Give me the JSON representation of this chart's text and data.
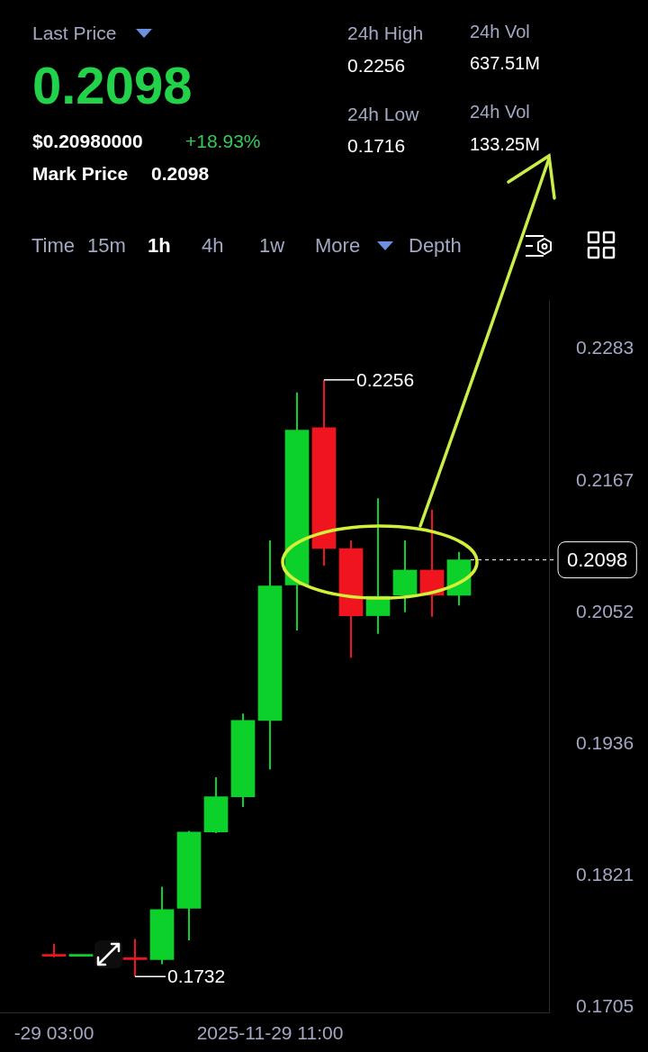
{
  "chart_data": {
    "type": "candlestick",
    "x": [
      "2025-11-29T03:00",
      "2025-11-29T04:00",
      "2025-11-29T06:00",
      "2025-11-29T07:00",
      "2025-11-29T08:00",
      "2025-11-29T09:00",
      "2025-11-29T10:00",
      "2025-11-29T11:00",
      "2025-11-29T12:00",
      "2025-11-29T13:00",
      "2025-11-29T14:00",
      "2025-11-29T15:00",
      "2025-11-29T16:00",
      "2025-11-29T17:00",
      "2025-11-29T18:00"
    ],
    "ohlc": [
      [
        0.1751,
        0.1761,
        0.1749,
        0.175
      ],
      [
        0.175,
        0.1751,
        0.175,
        0.1751
      ],
      [
        0.1748,
        0.1765,
        0.1732,
        0.1747
      ],
      [
        0.1747,
        0.1811,
        0.1743,
        0.1791
      ],
      [
        0.1792,
        0.186,
        0.1764,
        0.1859
      ],
      [
        0.1859,
        0.1907,
        0.1858,
        0.189
      ],
      [
        0.189,
        0.1963,
        0.1881,
        0.1957
      ],
      [
        0.1957,
        0.2115,
        0.1914,
        0.2075
      ],
      [
        0.2076,
        0.2245,
        0.2036,
        0.2212
      ],
      [
        0.2214,
        0.2256,
        0.2093,
        0.2108
      ],
      [
        0.2108,
        0.2115,
        0.2012,
        0.2049
      ],
      [
        0.2049,
        0.2152,
        0.2033,
        0.2066
      ],
      [
        0.2067,
        0.2115,
        0.2052,
        0.2089
      ],
      [
        0.2089,
        0.2142,
        0.2048,
        0.2067
      ],
      [
        0.2067,
        0.2105,
        0.2058,
        0.2098
      ]
    ],
    "colors": [
      "#f0141e",
      "#0bd12a",
      "#f0141e",
      "#0bd12a",
      "#0bd12a",
      "#0bd12a",
      "#0bd12a",
      "#0bd12a",
      "#0bd12a",
      "#f0141e",
      "#f0141e",
      "#0bd12a",
      "#0bd12a",
      "#f0141e",
      "#0bd12a"
    ],
    "xticks": [
      {
        "value": "2025-11-29T03:00",
        "label": "-29 03:00"
      },
      {
        "value": "2025-11-29T11:00",
        "label": "2025-11-29 11:00"
      }
    ],
    "xlim": [
      "2025-11-29T01:00",
      "2025-11-29T21:20"
    ],
    "ylim": [
      0.17,
      0.2325
    ],
    "yticks": [
      0.1705,
      0.1821,
      0.1936,
      0.2052,
      0.2167,
      0.2283
    ],
    "grid": false,
    "legend": false,
    "ref_lines": [
      {
        "axis": "y",
        "value": 0.2098,
        "label": "0.2098",
        "line_style": "dashed",
        "color": "#ffffff"
      }
    ],
    "annotations": [
      "Last Price",
      "0.2098",
      "$0.20980000",
      "+18.93%",
      "Mark Price",
      "0.2098",
      "24h High",
      "0.2256",
      "24h Low",
      "0.1716",
      "24h Vol",
      "637.51M",
      "24h Vol",
      "133.25M",
      "Time",
      "15m",
      "1h",
      "4h",
      "1w",
      "More",
      "Depth",
      {
        "text": "0.2256",
        "x": "2025-11-29T13:00",
        "y": 0.2256
      },
      {
        "text": "0.1732",
        "x": "2025-11-29T06:00",
        "y": 0.1732
      }
    ]
  }
}
